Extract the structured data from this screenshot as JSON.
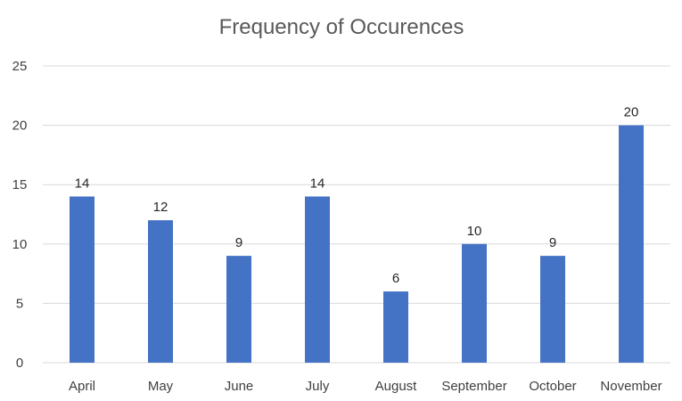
{
  "chart_data": {
    "type": "bar",
    "title": "Frequency of Occurences",
    "xlabel": "",
    "ylabel": "",
    "categories": [
      "April",
      "May",
      "June",
      "July",
      "August",
      "September",
      "October",
      "November"
    ],
    "values": [
      14,
      12,
      9,
      14,
      6,
      10,
      9,
      20
    ],
    "ylim": [
      0,
      25
    ],
    "yticks": [
      0,
      5,
      10,
      15,
      20,
      25
    ],
    "grid": true,
    "legend": "none",
    "data_labels": true,
    "colors": {
      "bar": "#4472C4",
      "grid": "#D9D9D9"
    }
  }
}
